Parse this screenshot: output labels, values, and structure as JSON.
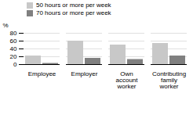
{
  "chart_data": {
    "type": "bar",
    "categories": [
      "Employee",
      "Employer",
      "Own\naccount\nworker",
      "Contributing\nfamily\nworker"
    ],
    "series": [
      {
        "name": "50 hours or more per week",
        "color": "#c8c8c8",
        "values": [
          22,
          60,
          50,
          54
        ]
      },
      {
        "name": "70 hours or more per week",
        "color": "#808080",
        "values": [
          3,
          16,
          13,
          22
        ]
      }
    ],
    "ylabel": "%",
    "ylim": [
      0,
      80
    ],
    "yticks": [
      0,
      20,
      40,
      60,
      80
    ],
    "grid": true,
    "legend": "upper left"
  }
}
